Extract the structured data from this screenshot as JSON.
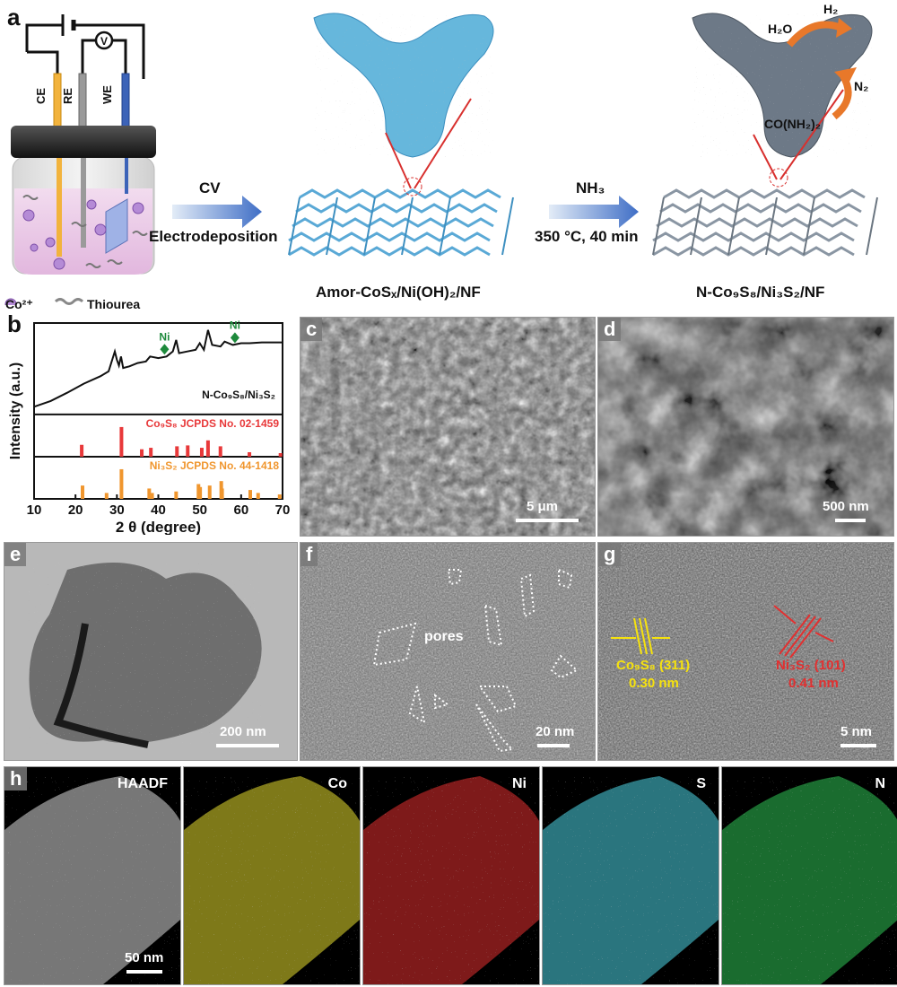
{
  "panel_a": {
    "letter": "a",
    "electrodes": [
      "CE",
      "RE",
      "WE"
    ],
    "voltmeter": "V",
    "legend_co": "Co²⁺",
    "legend_thiourea": "Thiourea",
    "step1_top": "CV",
    "step1_bottom": "Electrodeposition",
    "step2_top": "NH₃",
    "step2_bottom": "350 °C, 40 min",
    "product1": "Amor-CoSₓ/Ni(OH)₂/NF",
    "product2": "N-Co₉S₈/Ni₃S₂/NF",
    "reaction_h2o": "H₂O",
    "reaction_h2": "H₂",
    "reaction_n2": "N₂",
    "reaction_urea": "CO(NH₂)₂"
  },
  "panel_b": {
    "letter": "b",
    "chart_data": {
      "type": "line",
      "xlabel": "2 θ (degree)",
      "ylabel": "Intensity (a.u.)",
      "xlim": [
        10,
        70
      ],
      "xticks": [
        10,
        20,
        30,
        40,
        50,
        60,
        70
      ],
      "series": [
        {
          "name": "N-Co₉S₈/Ni₃S₂",
          "x": [
            10,
            14,
            18,
            22,
            26,
            28,
            29.5,
            30,
            30.5,
            31,
            31.5,
            33,
            35,
            37,
            38,
            40,
            42,
            43.5,
            44.3,
            45,
            47,
            49,
            50,
            51,
            52,
            53,
            55,
            56,
            58,
            60,
            62,
            65,
            70
          ],
          "y": [
            0.05,
            0.12,
            0.22,
            0.33,
            0.42,
            0.48,
            0.72,
            0.62,
            0.55,
            0.66,
            0.52,
            0.54,
            0.58,
            0.6,
            0.66,
            0.64,
            0.66,
            0.72,
            0.86,
            0.7,
            0.72,
            0.74,
            0.82,
            0.74,
            0.98,
            0.8,
            0.78,
            0.84,
            0.8,
            0.82,
            0.82,
            0.83,
            0.83
          ]
        }
      ],
      "annotations": [
        {
          "text": "Ni",
          "x": 41.5,
          "color": "#1e8a3c"
        },
        {
          "text": "Ni",
          "x": 58.5,
          "color": "#1e8a3c"
        }
      ],
      "reference_1": {
        "name": "Co₉S₈ JCPDS No. 02-1459",
        "color": "#e8393a",
        "peaks": [
          [
            21.5,
            0.4
          ],
          [
            31.1,
            1.0
          ],
          [
            36.0,
            0.25
          ],
          [
            38.2,
            0.3
          ],
          [
            44.5,
            0.35
          ],
          [
            47.1,
            0.38
          ],
          [
            50.5,
            0.3
          ],
          [
            52.0,
            0.55
          ],
          [
            55.0,
            0.35
          ],
          [
            62.0,
            0.15
          ],
          [
            69.5,
            0.12
          ]
        ]
      },
      "reference_2": {
        "name": "Ni₃S₂ JCPDS No. 44-1418",
        "color": "#f0962e",
        "peaks": [
          [
            21.7,
            0.45
          ],
          [
            27.5,
            0.2
          ],
          [
            31.1,
            1.0
          ],
          [
            37.8,
            0.35
          ],
          [
            38.5,
            0.2
          ],
          [
            44.3,
            0.25
          ],
          [
            49.7,
            0.5
          ],
          [
            50.1,
            0.4
          ],
          [
            52.4,
            0.45
          ],
          [
            55.2,
            0.6
          ],
          [
            55.4,
            0.35
          ],
          [
            62.2,
            0.3
          ],
          [
            64.1,
            0.2
          ],
          [
            69.3,
            0.15
          ]
        ]
      }
    }
  },
  "panel_c": {
    "letter": "c",
    "scale": "5 μm"
  },
  "panel_d": {
    "letter": "d",
    "scale": "500 nm"
  },
  "panel_e": {
    "letter": "e",
    "scale": "200 nm"
  },
  "panel_f": {
    "letter": "f",
    "scale": "20 nm",
    "annotation": "pores"
  },
  "panel_g": {
    "letter": "g",
    "scale": "5 nm",
    "fringe_1": "Co₉S₈ (311)",
    "fringe_1_spacing": "0.30 nm",
    "fringe_2": "Ni₃S₂ (101)",
    "fringe_2_spacing": "0.41 nm"
  },
  "panel_h": {
    "letter": "h",
    "scale": "50 nm",
    "maps": [
      {
        "title": "HAADF",
        "color": "#d8d8d8"
      },
      {
        "title": "Co",
        "color": "#e6dc2e"
      },
      {
        "title": "Ni",
        "color": "#e53030"
      },
      {
        "title": "S",
        "color": "#4cd6e6"
      },
      {
        "title": "N",
        "color": "#2fc455"
      }
    ]
  }
}
